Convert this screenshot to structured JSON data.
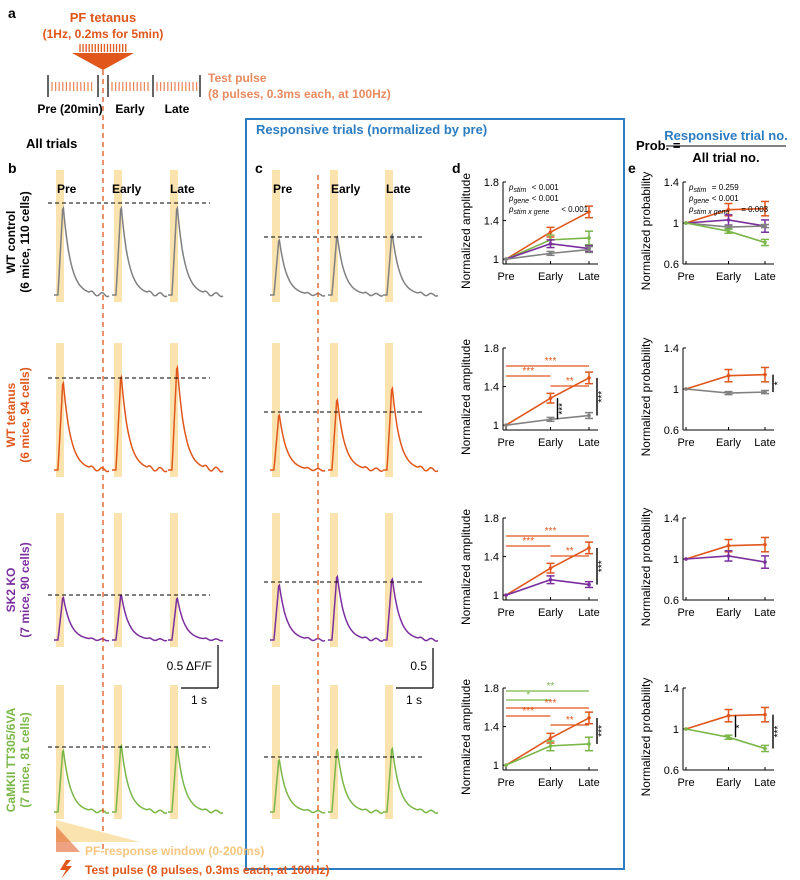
{
  "colors": {
    "wt_control": "#808080",
    "wt_tetanus": "#E0561B",
    "sk2_ko": "#7B2F9E",
    "camkii": "#7AB648",
    "window": "#FBE3B0",
    "box": "#2C7CC1",
    "test_pulse": "#E98A60",
    "black": "#000000"
  },
  "panel_labels": {
    "a": "a",
    "b": "b",
    "c": "c",
    "d": "d",
    "e": "e"
  },
  "protocol": {
    "tetanus_title": "PF tetanus",
    "tetanus_params": "(1Hz, 0.2ms for 5min)",
    "pre_label": "Pre (20min)",
    "early_label": "Early",
    "late_label": "Late",
    "test_pulse_title": "Test pulse",
    "test_pulse_params": "(8 pulses, 0.3ms each, at 100Hz)"
  },
  "titles": {
    "all_trials": "All trials",
    "responsive": "Responsive trials (normalized by pre)",
    "prob_prefix": "Prob. =",
    "prob_numerator": "Responsive trial no.",
    "prob_denominator": "All trial no."
  },
  "groups": [
    {
      "key": "wt_control",
      "name": "WT control",
      "sub": "(6 mice, 110 cells)"
    },
    {
      "key": "wt_tetanus",
      "name": "WT tetanus",
      "sub": "(6 mice, 94 cells)"
    },
    {
      "key": "sk2_ko",
      "name": "SK2 KO",
      "sub": "(7 mice, 90 cells)"
    },
    {
      "key": "camkii",
      "name": "CaMKII TT305/6VA",
      "sub": "(7 mice, 81 cells)"
    }
  ],
  "trace_labels": [
    "Pre",
    "Early",
    "Late"
  ],
  "scalebars": {
    "b_y": "0.5 ΔF/F",
    "b_x": "1 s",
    "c_y": "0.5",
    "c_x": "1 s"
  },
  "legend": {
    "window": "PF-response window (0-200ms)",
    "test_pulse": "Test pulse (8 pulses, 0.3ms each, at 100Hz)"
  },
  "stats_d": {
    "p_stim": "< 0.001",
    "p_gene": "< 0.001",
    "p_stim_gene": "< 0.001"
  },
  "stats_e": {
    "p_stim": "= 0.259",
    "p_gene": "< 0.001",
    "p_stim_gene": "= 0.003"
  },
  "chart_data": [
    {
      "type": "line",
      "panel": "d",
      "row": 1,
      "categories": [
        "Pre",
        "Early",
        "Late"
      ],
      "ylabel": "Normalized amplitude",
      "ylim": [
        0.95,
        1.8
      ],
      "yticks": [
        1,
        1.4,
        1.8
      ],
      "series": [
        {
          "name": "WT tetanus",
          "values": [
            1,
            1.28,
            1.49
          ],
          "err": [
            0,
            0.05,
            0.06
          ]
        },
        {
          "name": "CaMKII TT305/6VA",
          "values": [
            1,
            1.2,
            1.22
          ],
          "err": [
            0,
            0.05,
            0.07
          ]
        },
        {
          "name": "SK2 KO",
          "values": [
            1,
            1.16,
            1.11
          ],
          "err": [
            0,
            0.04,
            0.03
          ]
        },
        {
          "name": "WT control",
          "values": [
            1,
            1.06,
            1.1
          ],
          "err": [
            0,
            0.02,
            0.03
          ]
        }
      ]
    },
    {
      "type": "line",
      "panel": "d",
      "row": 2,
      "categories": [
        "Pre",
        "Early",
        "Late"
      ],
      "ylabel": "Normalized amplitude",
      "ylim": [
        0.95,
        1.8
      ],
      "yticks": [
        1,
        1.4,
        1.8
      ],
      "series": [
        {
          "name": "WT tetanus",
          "values": [
            1,
            1.28,
            1.49
          ],
          "err": [
            0,
            0.05,
            0.06
          ]
        },
        {
          "name": "WT control",
          "values": [
            1,
            1.06,
            1.1
          ],
          "err": [
            0,
            0.02,
            0.03
          ]
        }
      ],
      "annotations": [
        "***",
        "***",
        "**",
        "***",
        "***"
      ]
    },
    {
      "type": "line",
      "panel": "d",
      "row": 3,
      "categories": [
        "Pre",
        "Early",
        "Late"
      ],
      "ylabel": "Normalized amplitude",
      "ylim": [
        0.95,
        1.8
      ],
      "yticks": [
        1,
        1.4,
        1.8
      ],
      "series": [
        {
          "name": "WT tetanus",
          "values": [
            1,
            1.28,
            1.49
          ],
          "err": [
            0,
            0.05,
            0.06
          ]
        },
        {
          "name": "SK2 KO",
          "values": [
            1,
            1.16,
            1.11
          ],
          "err": [
            0,
            0.04,
            0.03
          ]
        }
      ],
      "annotations": [
        "***",
        "***",
        "**",
        "***"
      ]
    },
    {
      "type": "line",
      "panel": "d",
      "row": 4,
      "categories": [
        "Pre",
        "Early",
        "Late"
      ],
      "ylabel": "Normalized amplitude",
      "ylim": [
        0.95,
        1.8
      ],
      "yticks": [
        1,
        1.4,
        1.8
      ],
      "series": [
        {
          "name": "WT tetanus",
          "values": [
            1,
            1.28,
            1.49
          ],
          "err": [
            0,
            0.05,
            0.06
          ]
        },
        {
          "name": "CaMKII TT305/6VA",
          "values": [
            1,
            1.2,
            1.22
          ],
          "err": [
            0,
            0.05,
            0.07
          ]
        }
      ],
      "annotations": [
        "**",
        "*",
        "***",
        "***",
        "**",
        "***"
      ]
    },
    {
      "type": "line",
      "panel": "e",
      "row": 1,
      "categories": [
        "Pre",
        "Early",
        "Late"
      ],
      "ylabel": "Normalized probability",
      "ylim": [
        0.6,
        1.4
      ],
      "yticks": [
        0.6,
        1,
        1.4
      ],
      "series": [
        {
          "name": "WT tetanus",
          "values": [
            1,
            1.13,
            1.14
          ],
          "err": [
            0,
            0.06,
            0.07
          ]
        },
        {
          "name": "SK2 KO",
          "values": [
            1,
            1.03,
            0.97
          ],
          "err": [
            0,
            0.05,
            0.06
          ]
        },
        {
          "name": "WT control",
          "values": [
            1,
            0.96,
            0.97
          ],
          "err": [
            0,
            0.015,
            0.015
          ]
        },
        {
          "name": "CaMKII TT305/6VA",
          "values": [
            1,
            0.92,
            0.81
          ],
          "err": [
            0,
            0.02,
            0.03
          ]
        }
      ]
    },
    {
      "type": "line",
      "panel": "e",
      "row": 2,
      "categories": [
        "Pre",
        "Early",
        "Late"
      ],
      "ylabel": "Normalized probability",
      "ylim": [
        0.6,
        1.4
      ],
      "yticks": [
        0.6,
        1,
        1.4
      ],
      "series": [
        {
          "name": "WT tetanus",
          "values": [
            1,
            1.13,
            1.14
          ],
          "err": [
            0,
            0.06,
            0.07
          ]
        },
        {
          "name": "WT control",
          "values": [
            1,
            0.96,
            0.97
          ],
          "err": [
            0,
            0.015,
            0.015
          ]
        }
      ],
      "annotations": [
        "*"
      ]
    },
    {
      "type": "line",
      "panel": "e",
      "row": 3,
      "categories": [
        "Pre",
        "Early",
        "Late"
      ],
      "ylabel": "Normalized probability",
      "ylim": [
        0.6,
        1.4
      ],
      "yticks": [
        0.6,
        1,
        1.4
      ],
      "series": [
        {
          "name": "WT tetanus",
          "values": [
            1,
            1.13,
            1.14
          ],
          "err": [
            0,
            0.06,
            0.07
          ]
        },
        {
          "name": "SK2 KO",
          "values": [
            1,
            1.03,
            0.97
          ],
          "err": [
            0,
            0.05,
            0.06
          ]
        }
      ]
    },
    {
      "type": "line",
      "panel": "e",
      "row": 4,
      "categories": [
        "Pre",
        "Early",
        "Late"
      ],
      "ylabel": "Normalized probability",
      "ylim": [
        0.6,
        1.4
      ],
      "yticks": [
        0.6,
        1,
        1.4
      ],
      "series": [
        {
          "name": "WT tetanus",
          "values": [
            1,
            1.13,
            1.14
          ],
          "err": [
            0,
            0.06,
            0.07
          ]
        },
        {
          "name": "CaMKII TT305/6VA",
          "values": [
            1,
            0.92,
            0.81
          ],
          "err": [
            0,
            0.02,
            0.03
          ]
        }
      ],
      "annotations": [
        "*",
        "***"
      ]
    }
  ],
  "trace_data": {
    "b_peaks": [
      {
        "key": "wt_control",
        "values": [
          1.0,
          1.0,
          1.0
        ]
      },
      {
        "key": "wt_tetanus",
        "values": [
          1.0,
          1.07,
          1.18
        ]
      },
      {
        "key": "sk2_ko",
        "values": [
          1.0,
          1.05,
          0.98
        ]
      },
      {
        "key": "camkii",
        "values": [
          1.0,
          1.08,
          1.05
        ]
      }
    ],
    "c_peaks": [
      {
        "key": "wt_control",
        "values": [
          1.0,
          1.06,
          1.1
        ]
      },
      {
        "key": "wt_tetanus",
        "values": [
          1.0,
          1.28,
          1.49
        ]
      },
      {
        "key": "sk2_ko",
        "values": [
          1.0,
          1.16,
          1.11
        ]
      },
      {
        "key": "camkii",
        "values": [
          1.0,
          1.2,
          1.22
        ]
      }
    ]
  }
}
